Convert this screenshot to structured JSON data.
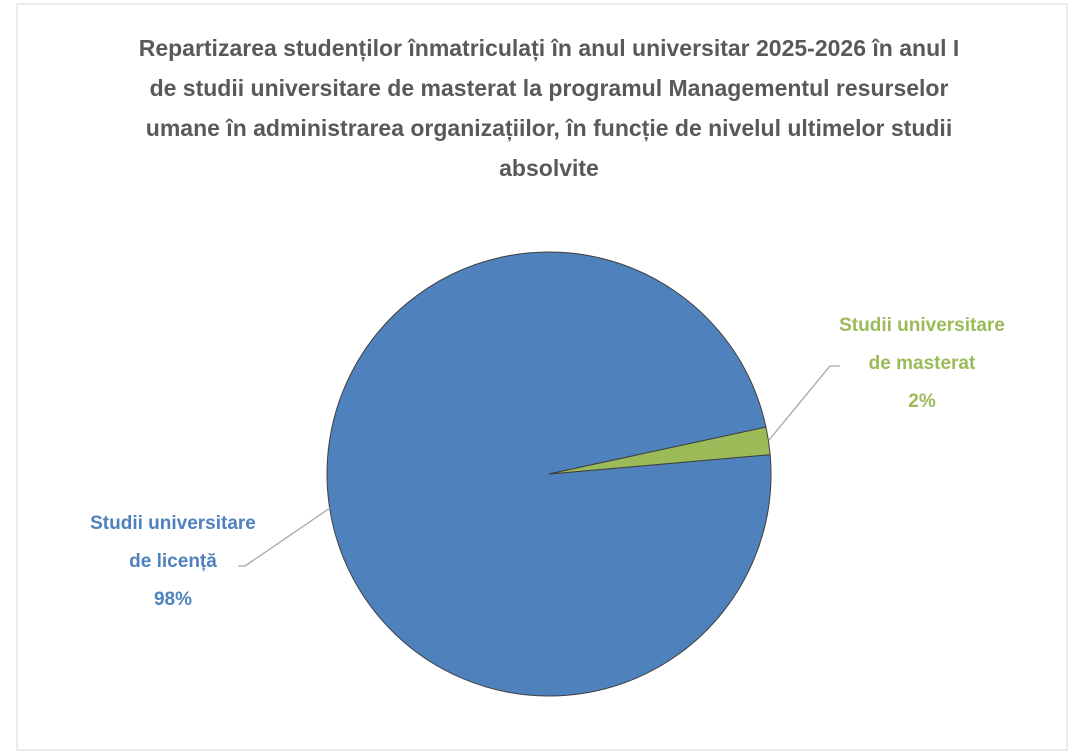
{
  "chart_data": {
    "type": "pie",
    "title": "Repartizarea studenților înmatriculați în anul universitar 2025-2026 în anul I de studii universitare de masterat la programul Managementul resurselor umane în administrarea organizațiilor, în funcție de nivelul ultimelor studii absolvite",
    "categories": [
      "Studii universitare de licență",
      "Studii universitare de masterat"
    ],
    "values": [
      98,
      2
    ],
    "value_labels": [
      "98%",
      "2%"
    ],
    "colors": [
      "#4f81bd",
      "#9bbb59"
    ]
  }
}
